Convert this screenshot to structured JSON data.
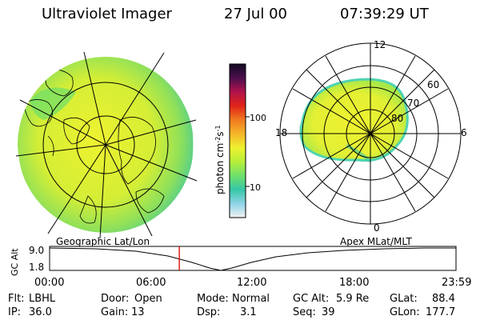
{
  "header": {
    "instrument": "Ultraviolet Imager",
    "date": "27 Jul 00",
    "time": "07:39:29 UT"
  },
  "colorbar": {
    "unit": "photon cm",
    "unit_sup1": "-2",
    "unit_mid": "s",
    "unit_sup2": "-1",
    "tick_100": "100",
    "tick_10": "10",
    "stops": [
      "#f2f2f2",
      "#8fd3e6",
      "#36c7a8",
      "#6ee06a",
      "#b7ee3a",
      "#eef230",
      "#f6b52a",
      "#f07a20",
      "#e02418",
      "#b1124c",
      "#4b0f4c",
      "#120a24"
    ]
  },
  "polar_plot": {
    "mlt_labels": {
      "top": "12",
      "left": "18",
      "right": "6",
      "bottom": "0"
    },
    "lat_labels": [
      "60",
      "70",
      "80"
    ]
  },
  "timeline": {
    "ylabel": "GC Alt",
    "ytick_high": "9.0",
    "ytick_low": "1.8",
    "left_caption": "Geographic Lat/Lon",
    "right_caption": "Apex MLat/MLT",
    "xticks": [
      "00:00",
      "06:00",
      "12:00",
      "18:00",
      "23:59"
    ],
    "current_time_hours": 7.66,
    "marker_color": "#e0201a"
  },
  "info": {
    "flt_label": "Flt:",
    "flt_value": "LBHL",
    "ip_label": "IP:",
    "ip_value": "36.0",
    "door_label": "Door:",
    "door_value": "Open",
    "gain_label": "Gain:",
    "gain_value": "13",
    "mode_label": "Mode:",
    "mode_value": "Normal",
    "dsp_label": "Dsp:",
    "dsp_value": "3.1",
    "gcalt_label": "GC Alt:",
    "gcalt_value": "5.9 Re",
    "seq_label": "Seq:",
    "seq_value": "39",
    "glat_label": "GLat:",
    "glat_value": "88.4",
    "glon_label": "GLon:",
    "glon_value": "177.7"
  }
}
